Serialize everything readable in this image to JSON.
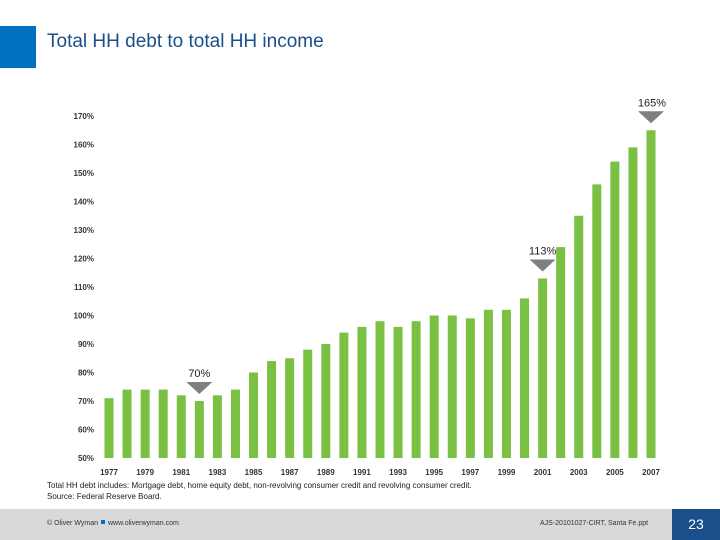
{
  "header": {
    "title": "Total HH debt to total HH income",
    "accent_color": "#0070c0"
  },
  "chart_data": {
    "type": "bar",
    "categories": [
      "1977",
      "1978",
      "1979",
      "1980",
      "1981",
      "1982",
      "1983",
      "1984",
      "1985",
      "1986",
      "1987",
      "1988",
      "1989",
      "1990",
      "1991",
      "1992",
      "1993",
      "1994",
      "1995",
      "1996",
      "1997",
      "1998",
      "1999",
      "2000",
      "2001",
      "2002",
      "2003",
      "2004",
      "2005",
      "2006",
      "2007"
    ],
    "tick_labels": [
      "1977",
      "1979",
      "1981",
      "1983",
      "1985",
      "1987",
      "1989",
      "1991",
      "1993",
      "1995",
      "1997",
      "1999",
      "2001",
      "2003",
      "2005",
      "2007"
    ],
    "values": [
      71,
      74,
      74,
      74,
      72,
      70,
      72,
      74,
      80,
      84,
      85,
      88,
      90,
      94,
      96,
      98,
      96,
      98,
      100,
      100,
      99,
      102,
      102,
      106,
      113,
      124,
      135,
      146,
      154,
      159,
      165
    ],
    "ylim": [
      50,
      170
    ],
    "yticks": [
      "170%",
      "160%",
      "150%",
      "140%",
      "130%",
      "120%",
      "110%",
      "100%",
      "90%",
      "80%",
      "70%",
      "60%",
      "50%"
    ],
    "ytick_values": [
      170,
      160,
      150,
      140,
      130,
      120,
      110,
      100,
      90,
      80,
      70,
      60,
      50
    ],
    "bar_color": "#7ac143",
    "grid": false,
    "annotations": [
      {
        "category": "1982",
        "value": 70,
        "label": "70%"
      },
      {
        "category": "2001",
        "value": 113,
        "label": "113%"
      },
      {
        "category": "2007",
        "value": 165,
        "label": "165%"
      }
    ]
  },
  "notes": {
    "definition": "Total HH debt includes: Mortgage debt, home equity debt, non-revolving consumer credit and revolving consumer credit.",
    "source": "Source: Federal Reserve Board."
  },
  "footer": {
    "copyright": "© Oliver Wyman",
    "website": "www.oliverwyman.com",
    "document_id": "AJS-20101027-CIRT, Santa Fe.ppt",
    "page_number": "23"
  }
}
